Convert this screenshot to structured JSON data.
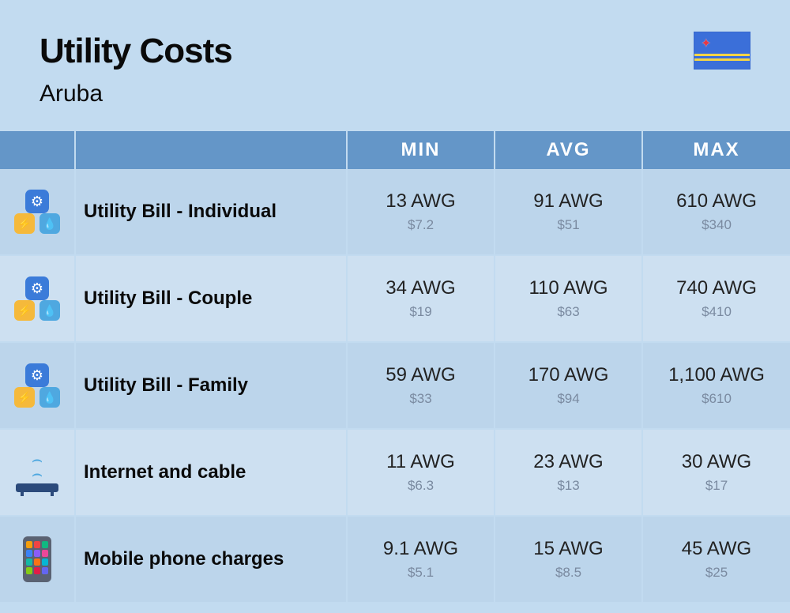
{
  "header": {
    "title": "Utility Costs",
    "subtitle": "Aruba"
  },
  "columns": {
    "min": "MIN",
    "avg": "AVG",
    "max": "MAX"
  },
  "currency": "AWG",
  "rows": [
    {
      "icon": "utility",
      "label": "Utility Bill - Individual",
      "min": {
        "local": "13 AWG",
        "usd": "$7.2"
      },
      "avg": {
        "local": "91 AWG",
        "usd": "$51"
      },
      "max": {
        "local": "610 AWG",
        "usd": "$340"
      }
    },
    {
      "icon": "utility",
      "label": "Utility Bill - Couple",
      "min": {
        "local": "34 AWG",
        "usd": "$19"
      },
      "avg": {
        "local": "110 AWG",
        "usd": "$63"
      },
      "max": {
        "local": "740 AWG",
        "usd": "$410"
      }
    },
    {
      "icon": "utility",
      "label": "Utility Bill - Family",
      "min": {
        "local": "59 AWG",
        "usd": "$33"
      },
      "avg": {
        "local": "170 AWG",
        "usd": "$94"
      },
      "max": {
        "local": "1,100 AWG",
        "usd": "$610"
      }
    },
    {
      "icon": "router",
      "label": "Internet and cable",
      "min": {
        "local": "11 AWG",
        "usd": "$6.3"
      },
      "avg": {
        "local": "23 AWG",
        "usd": "$13"
      },
      "max": {
        "local": "30 AWG",
        "usd": "$17"
      }
    },
    {
      "icon": "phone",
      "label": "Mobile phone charges",
      "min": {
        "local": "9.1 AWG",
        "usd": "$5.1"
      },
      "avg": {
        "local": "15 AWG",
        "usd": "$8.5"
      },
      "max": {
        "local": "45 AWG",
        "usd": "$25"
      }
    }
  ],
  "phone_app_colors": [
    "#f59e0b",
    "#ef4444",
    "#10b981",
    "#3b82f6",
    "#8b5cf6",
    "#ec4899",
    "#14b8a6",
    "#f97316",
    "#06b6d4",
    "#84cc16",
    "#e11d48",
    "#6366f1"
  ],
  "colors": {
    "page_bg": "#c2dbf0",
    "header_bg": "#6496c8",
    "row_odd": "#bcd5eb",
    "row_even": "#cde0f1",
    "text_primary": "#0a0a0a",
    "text_secondary": "#7a8aa0",
    "flag_bg": "#3b6fd9",
    "flag_stripe": "#f5d547",
    "flag_star": "#e63946"
  }
}
